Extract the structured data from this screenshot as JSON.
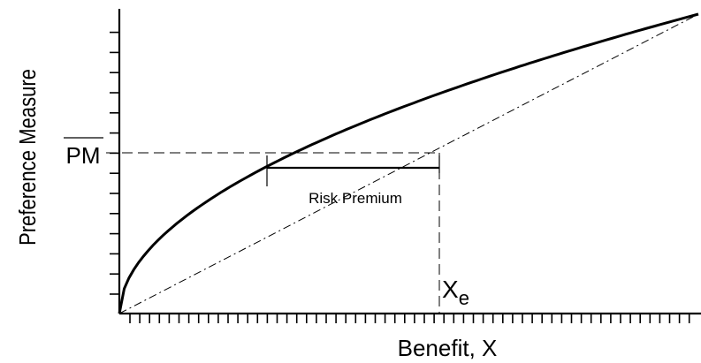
{
  "labels": {
    "ylabel": "Preference Measure",
    "xlabel": "Benefit, X",
    "pm": "PM",
    "risk_premium": "Risk Premium",
    "xe_main": "X",
    "xe_sub": "e"
  }
}
